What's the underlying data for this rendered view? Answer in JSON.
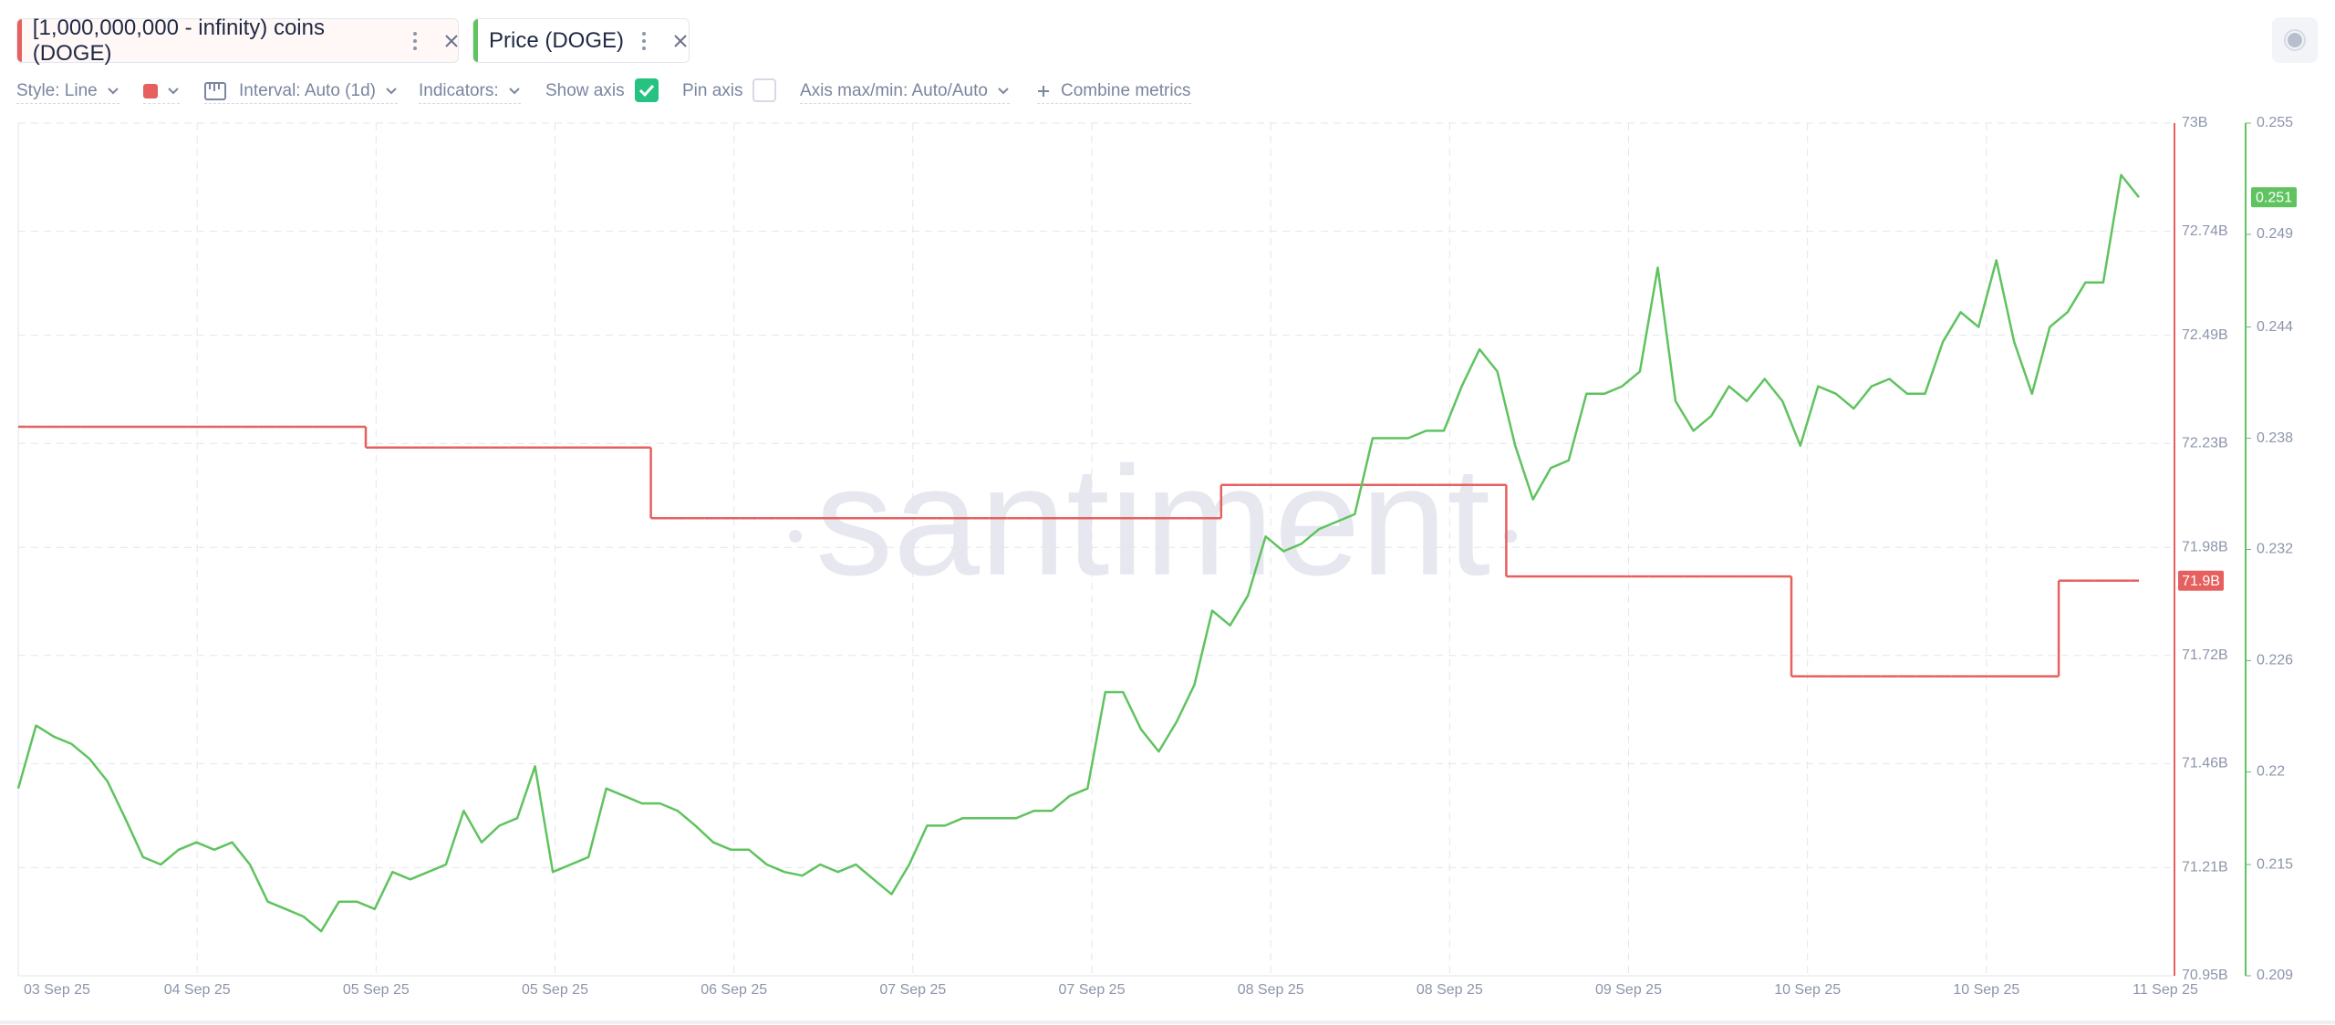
{
  "toolbar": {
    "style": "Style: Line",
    "interval": "Interval: Auto (1d)",
    "indicators": "Indicators:",
    "show_axis": "Show axis",
    "show_axis_checked": true,
    "pin_axis": "Pin axis",
    "pin_axis_checked": false,
    "axis_range": "Axis max/min: Auto/Auto",
    "combine": "Combine metrics"
  },
  "chart_data": {
    "type": "line",
    "watermark": "santiment",
    "grid": true,
    "x_labels": [
      "03 Sep 25",
      "04 Sep 25",
      "05 Sep 25",
      "05 Sep 25",
      "06 Sep 25",
      "07 Sep 25",
      "07 Sep 25",
      "08 Sep 25",
      "08 Sep 25",
      "09 Sep 25",
      "10 Sep 25",
      "10 Sep 25",
      "11 Sep 25"
    ],
    "ylim": [
      70.95,
      73
    ],
    "yticks": [
      {
        "value": 73,
        "label": "73B"
      },
      {
        "value": 72.74,
        "label": "72.74B"
      },
      {
        "value": 72.49,
        "label": "72.49B"
      },
      {
        "value": 72.23,
        "label": "72.23B"
      },
      {
        "value": 71.98,
        "label": "71.98B"
      },
      {
        "value": 71.72,
        "label": "71.72B"
      },
      {
        "value": 71.46,
        "label": "71.46B"
      },
      {
        "value": 71.21,
        "label": "71.21B"
      },
      {
        "value": 70.95,
        "label": "70.95B"
      }
    ],
    "y2lim": [
      0.209,
      0.255
    ],
    "y2ticks": [
      0.255,
      0.249,
      0.244,
      0.238,
      0.232,
      0.226,
      0.22,
      0.215,
      0.209
    ],
    "series": [
      {
        "name": "[1,000,000,000 - infinity) coins (DOGE)",
        "color": "#e5605e",
        "axis": "y",
        "interpolation": "step",
        "values": [
          72.27,
          72.27,
          72.27,
          72.27,
          72.27,
          72.27,
          72.27,
          72.27,
          72.27,
          72.27,
          72.27,
          72.27,
          72.27,
          72.27,
          72.27,
          72.27,
          72.27,
          72.27,
          72.27,
          72.27,
          72.22,
          72.22,
          72.22,
          72.22,
          72.22,
          72.22,
          72.22,
          72.22,
          72.22,
          72.22,
          72.22,
          72.22,
          72.22,
          72.22,
          72.22,
          72.22,
          72.05,
          72.05,
          72.05,
          72.05,
          72.05,
          72.05,
          72.05,
          72.05,
          72.05,
          72.05,
          72.05,
          72.05,
          72.05,
          72.05,
          72.05,
          72.05,
          72.05,
          72.05,
          72.05,
          72.05,
          72.05,
          72.05,
          72.05,
          72.05,
          72.05,
          72.05,
          72.05,
          72.05,
          72.05,
          72.05,
          72.05,
          72.05,
          72.13,
          72.13,
          72.13,
          72.13,
          72.13,
          72.13,
          72.13,
          72.13,
          72.13,
          72.13,
          72.13,
          72.13,
          72.13,
          72.13,
          72.13,
          72.13,
          71.91,
          71.91,
          71.91,
          71.91,
          71.91,
          71.91,
          71.91,
          71.91,
          71.91,
          71.91,
          71.91,
          71.91,
          71.91,
          71.91,
          71.91,
          71.91,
          71.67,
          71.67,
          71.67,
          71.67,
          71.67,
          71.67,
          71.67,
          71.67,
          71.67,
          71.67,
          71.67,
          71.67,
          71.67,
          71.67,
          71.67,
          71.9,
          71.9,
          71.9,
          71.9,
          71.9
        ],
        "value_labels": [
          null,
          null,
          null,
          null,
          null,
          null,
          null,
          null,
          null,
          null,
          null,
          null,
          null,
          null,
          null,
          null,
          null,
          null,
          null,
          null,
          null,
          null,
          null,
          null,
          null,
          null,
          null,
          null,
          null,
          null,
          null,
          null,
          null,
          null,
          null,
          null,
          null,
          null,
          null,
          null,
          null,
          null,
          null,
          null,
          null,
          null,
          null,
          null,
          null,
          null,
          null,
          null,
          null,
          null,
          null,
          null,
          null,
          null,
          null,
          null,
          null,
          null,
          null,
          null,
          null,
          null,
          null,
          null,
          null,
          null,
          null,
          null,
          null,
          null,
          null,
          null,
          null,
          null,
          null,
          null,
          null,
          null,
          null,
          null,
          null,
          null,
          null,
          null,
          null,
          null,
          null,
          null,
          null,
          null,
          null,
          null,
          null,
          null,
          null,
          null,
          null,
          null,
          null,
          null,
          null,
          null,
          null,
          null,
          null,
          null,
          null,
          null,
          null,
          null,
          null,
          null,
          null,
          null,
          null,
          "71.9B"
        ]
      },
      {
        "name": "Price (DOGE)",
        "color": "#5fc35f",
        "axis": "y2",
        "interpolation": "linear",
        "values": [
          0.2191,
          0.2225,
          0.2219,
          0.2215,
          0.2207,
          0.2195,
          0.2175,
          0.2154,
          0.215,
          0.2158,
          0.2162,
          0.2158,
          0.2162,
          0.215,
          0.213,
          0.2126,
          0.2122,
          0.2114,
          0.213,
          0.213,
          0.2126,
          0.2146,
          0.2142,
          0.2146,
          0.215,
          0.2179,
          0.2162,
          0.2171,
          0.2175,
          0.2203,
          0.2146,
          0.215,
          0.2154,
          0.2191,
          0.2187,
          0.2183,
          0.2183,
          0.2179,
          0.2171,
          0.2162,
          0.2158,
          0.2158,
          0.215,
          0.2146,
          0.2144,
          0.215,
          0.2146,
          0.215,
          0.2142,
          0.2134,
          0.215,
          0.2171,
          0.2171,
          0.2175,
          0.2175,
          0.2175,
          0.2175,
          0.2179,
          0.2179,
          0.2187,
          0.2191,
          0.2243,
          0.2243,
          0.2223,
          0.2211,
          0.2227,
          0.2247,
          0.2287,
          0.2279,
          0.2295,
          0.2327,
          0.2319,
          0.2323,
          0.2331,
          0.2335,
          0.2339,
          0.238,
          0.238,
          0.238,
          0.2384,
          0.2384,
          0.2408,
          0.2428,
          0.2416,
          0.2376,
          0.2347,
          0.2364,
          0.2368,
          0.2404,
          0.2404,
          0.2408,
          0.2416,
          0.2472,
          0.24,
          0.2384,
          0.2392,
          0.2408,
          0.24,
          0.2412,
          0.24,
          0.2376,
          0.2408,
          0.2404,
          0.2396,
          0.2408,
          0.2412,
          0.2404,
          0.2404,
          0.2432,
          0.2448,
          0.244,
          0.2476,
          0.2432,
          0.2404,
          0.244,
          0.2448,
          0.2464,
          0.2464,
          0.2522,
          0.251
        ]
      }
    ]
  }
}
